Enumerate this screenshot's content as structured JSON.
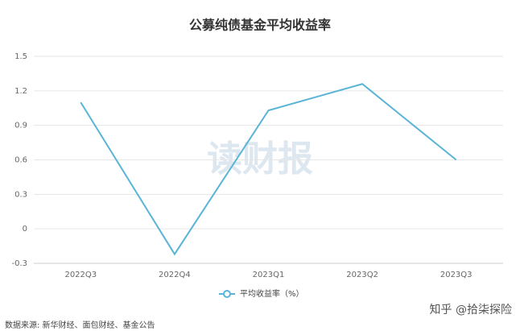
{
  "chart_data": {
    "type": "line",
    "title": "公募纯债基金平均收益率",
    "categories": [
      "2022Q3",
      "2022Q4",
      "2023Q1",
      "2023Q2",
      "2023Q3"
    ],
    "series": [
      {
        "name": "平均收益率（%）",
        "color": "#5ab4d6",
        "values": [
          1.1,
          -0.22,
          1.03,
          1.26,
          0.6
        ]
      }
    ],
    "ylim": [
      -0.3,
      1.5
    ],
    "yticks": [
      -0.3,
      0,
      0.3,
      0.6,
      0.9,
      1.2,
      1.5
    ],
    "grid": true
  },
  "watermark": "读财报",
  "source": "数据来源: 新华财经、面包财经、基金公告",
  "credit": "知乎 @拾柒探险"
}
